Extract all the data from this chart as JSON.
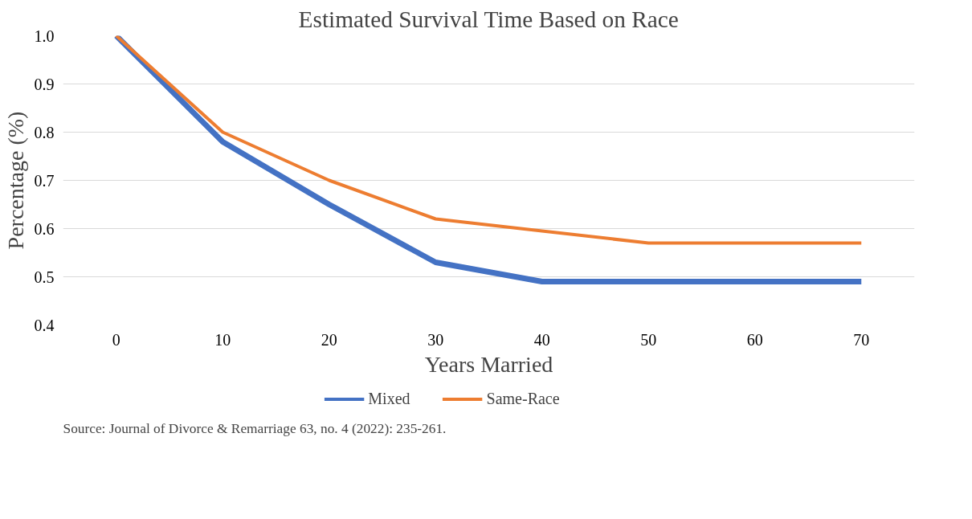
{
  "chart_data": {
    "type": "line",
    "title": "Estimated Survival Time Based on Race",
    "xlabel": "Years Married",
    "ylabel": "Percentage (%)",
    "categories": [
      "0",
      "10",
      "20",
      "30",
      "40",
      "50",
      "60",
      "70"
    ],
    "series": [
      {
        "name": "Mixed",
        "color": "#4472c4",
        "values": [
          1.0,
          0.78,
          0.65,
          0.53,
          0.49,
          0.49,
          0.49,
          0.49
        ]
      },
      {
        "name": "Same-Race",
        "color": "#ed7d31",
        "values": [
          1.0,
          0.8,
          0.7,
          0.62,
          0.595,
          0.57,
          0.57,
          0.57
        ]
      }
    ],
    "ylim": [
      0.4,
      1.0
    ],
    "yticks": [
      0.4,
      0.5,
      0.6,
      0.7,
      0.8,
      0.9,
      {
        "value": 1.0,
        "label": "1.0"
      }
    ],
    "grid": "y",
    "legend": "bottom",
    "marker": "none",
    "line_style": "solid",
    "annotations": [
      "Source: Journal of Divorce & Remarriage 63, no. 4 (2022): 235-261."
    ]
  }
}
